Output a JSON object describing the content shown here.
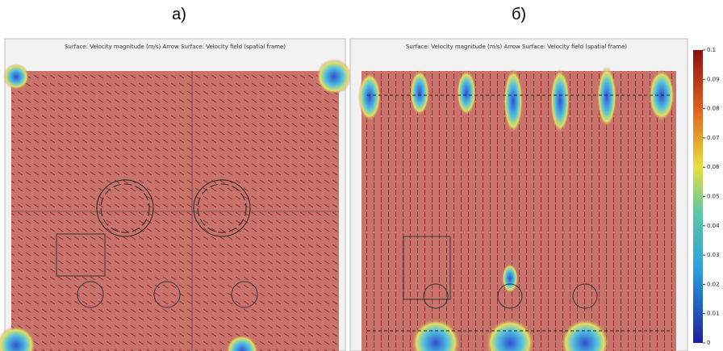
{
  "panels": [
    {
      "label": "а)",
      "title": "Surface: Velocity magnitude (m/s)  Arrow Surface: Velocity field (spatial frame)"
    },
    {
      "label": "б)",
      "title": "Surface: Velocity magnitude (m/s)  Arrow Surface: Velocity field (spatial frame)"
    }
  ],
  "colorbar": {
    "range": [
      0,
      0.1
    ],
    "ticks": [
      0.1,
      0.09,
      0.08,
      0.07,
      0.06,
      0.05,
      0.04,
      0.03,
      0.02,
      0.01,
      0
    ]
  }
}
